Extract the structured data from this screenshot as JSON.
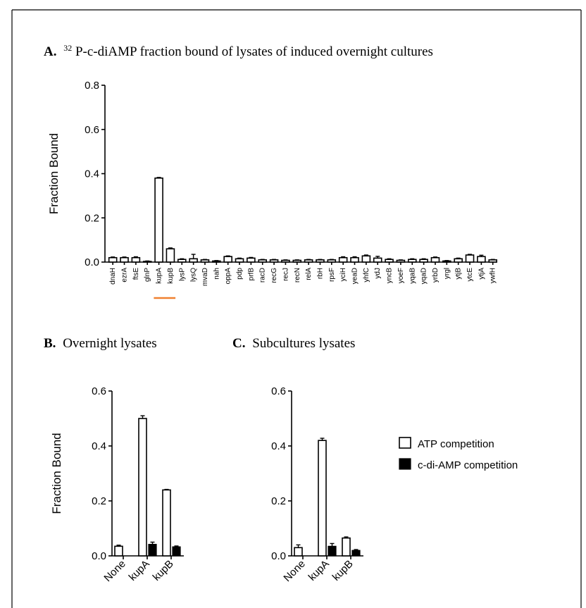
{
  "panels": {
    "a": {
      "label": "A.",
      "title_super": "32",
      "title_rest": "P-c-diAMP  fraction bound of lysates of induced overnight cultures"
    },
    "b": {
      "label": "B.",
      "title": "Overnight  lysates"
    },
    "c": {
      "label": "C.",
      "title": "Subcultures  lysates"
    }
  },
  "legend": {
    "atp": "ATP competition",
    "cdiamp": "c-di-AMP competition"
  },
  "colors": {
    "highlight": "#f08030",
    "filled": "#000000",
    "open": "#ffffff"
  },
  "chart_data": [
    {
      "id": "A",
      "type": "bar",
      "ylabel": "Fraction Bound",
      "ylim": [
        0,
        0.8
      ],
      "yticks": [
        "0.0",
        "0.2",
        "0.4",
        "0.6",
        "0.8"
      ],
      "ytick_values": [
        0,
        0.2,
        0.4,
        0.6,
        0.8
      ],
      "highlighted": [
        "kupA",
        "kupB"
      ],
      "categories": [
        "dnaH",
        "ezrA",
        "ftsE",
        "glnP",
        "kupA",
        "kupB",
        "lysP",
        "lysQ",
        "mvaD",
        "nah",
        "oppA",
        "pdp",
        "prfB",
        "racD",
        "recG",
        "recJ",
        "recN",
        "relA",
        "rbH",
        "rpsF",
        "yciH",
        "yeaD",
        "yhfC",
        "ydJ",
        "yncB",
        "yoeF",
        "yqaB",
        "yqaD",
        "yrbD",
        "yrgl",
        "ytjB",
        "ytcE",
        "ytjA",
        "ywfH"
      ],
      "values": [
        0.02,
        0.02,
        0.02,
        0.003,
        0.38,
        0.06,
        0.012,
        0.015,
        0.01,
        0.005,
        0.025,
        0.015,
        0.018,
        0.01,
        0.01,
        0.008,
        0.008,
        0.01,
        0.01,
        0.01,
        0.02,
        0.02,
        0.028,
        0.018,
        0.012,
        0.008,
        0.012,
        0.012,
        0.02,
        0.005,
        0.015,
        0.032,
        0.025,
        0.01
      ],
      "errors": [
        0.003,
        0.003,
        0.004,
        0.002,
        0.003,
        0.004,
        0.003,
        0.02,
        0.002,
        0.002,
        0.003,
        0.003,
        0.003,
        0.002,
        0.002,
        0.002,
        0.002,
        0.002,
        0.002,
        0.002,
        0.004,
        0.004,
        0.004,
        0.008,
        0.003,
        0.002,
        0.003,
        0.003,
        0.003,
        0.002,
        0.003,
        0.003,
        0.006,
        0.002
      ],
      "pattern": [
        "open",
        "open",
        "open",
        "open",
        "hatched",
        "hatched",
        "open",
        "open",
        "open",
        "open",
        "open",
        "open",
        "open",
        "open",
        "open",
        "open",
        "open",
        "open",
        "open",
        "open",
        "open",
        "open",
        "open",
        "open",
        "open",
        "open",
        "open",
        "open",
        "open",
        "open",
        "open",
        "open",
        "open",
        "open"
      ]
    },
    {
      "id": "B",
      "type": "bar",
      "ylabel": "Fraction Bound",
      "ylim": [
        0,
        0.6
      ],
      "yticks": [
        "0.0",
        "0.2",
        "0.4",
        "0.6"
      ],
      "ytick_values": [
        0,
        0.2,
        0.4,
        0.6
      ],
      "categories": [
        "None",
        "kupA",
        "kupB"
      ],
      "series": [
        {
          "name": "ATP competition",
          "values": [
            0.035,
            0.5,
            0.24
          ],
          "errors": [
            0.004,
            0.01,
            0.002
          ]
        },
        {
          "name": "c-di-AMP competition",
          "values": [
            null,
            0.042,
            0.033
          ],
          "errors": [
            0,
            0.008,
            0.003
          ]
        }
      ]
    },
    {
      "id": "C",
      "type": "bar",
      "ylabel": "",
      "ylim": [
        0,
        0.6
      ],
      "yticks": [
        "0.0",
        "0.2",
        "0.4",
        "0.6"
      ],
      "ytick_values": [
        0,
        0.2,
        0.4,
        0.6
      ],
      "categories": [
        "None",
        "kupA",
        "kupB"
      ],
      "series": [
        {
          "name": "ATP competition",
          "values": [
            0.03,
            0.42,
            0.065
          ],
          "errors": [
            0.01,
            0.008,
            0.004
          ]
        },
        {
          "name": "c-di-AMP competition",
          "values": [
            null,
            0.035,
            0.02
          ],
          "errors": [
            0,
            0.01,
            0.003
          ]
        }
      ]
    }
  ]
}
